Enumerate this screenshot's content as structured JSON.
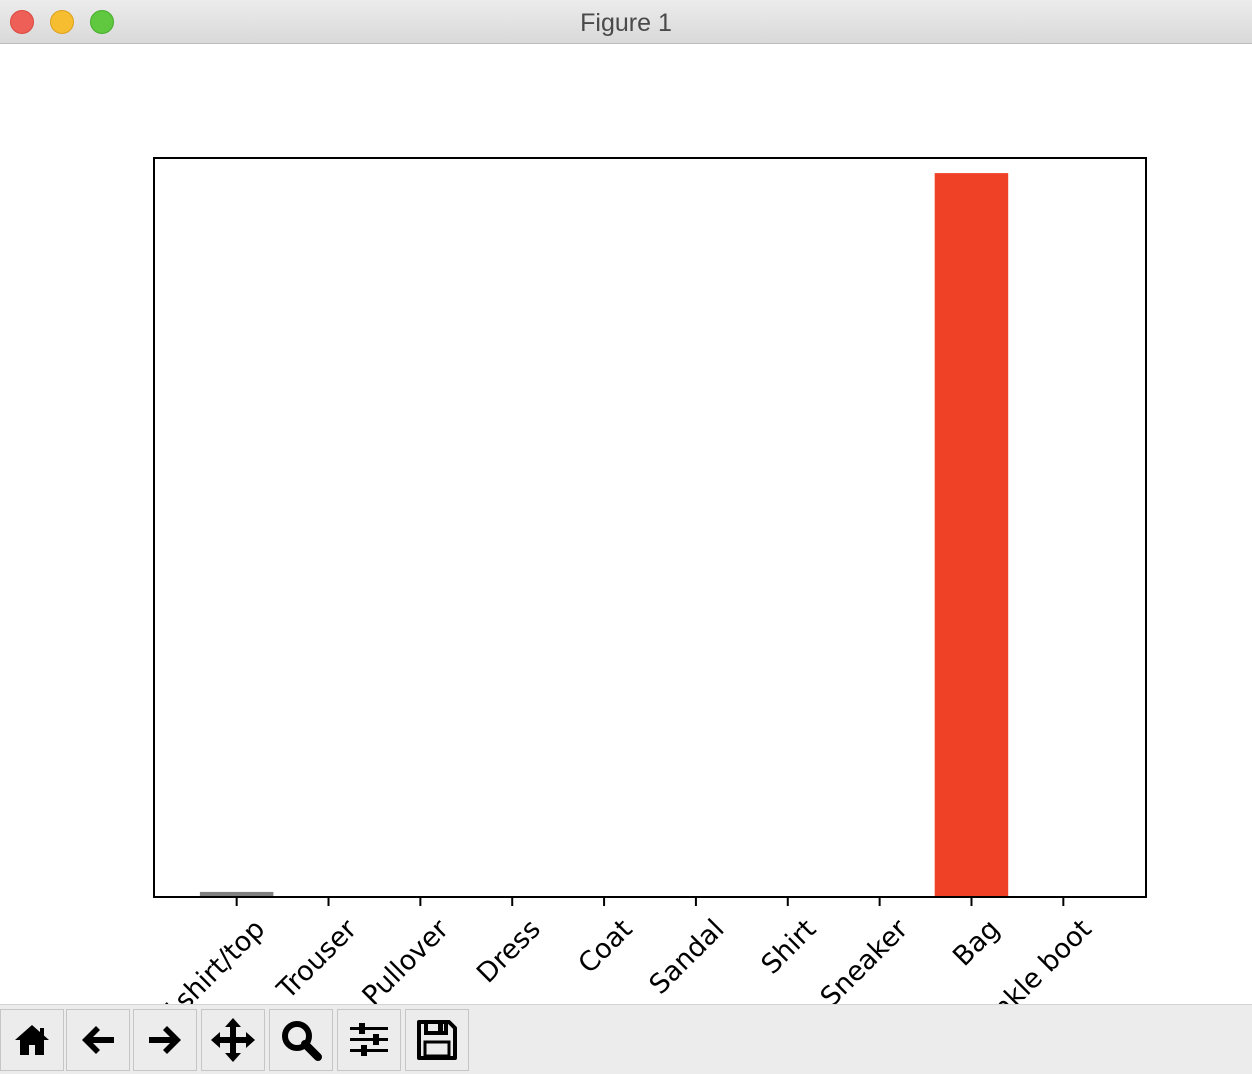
{
  "window": {
    "title": "Figure 1"
  },
  "toolbar": {
    "buttons": [
      {
        "name": "home-button",
        "icon": "home-icon"
      },
      {
        "name": "back-button",
        "icon": "arrow-left-icon"
      },
      {
        "name": "forward-button",
        "icon": "arrow-right-icon"
      },
      {
        "name": "pan-button",
        "icon": "move-icon"
      },
      {
        "name": "zoom-button",
        "icon": "magnifier-icon"
      },
      {
        "name": "configure-subplots-button",
        "icon": "sliders-icon"
      },
      {
        "name": "save-button",
        "icon": "floppy-disk-icon"
      }
    ]
  },
  "chart_data": {
    "type": "bar",
    "title": "",
    "xlabel": "",
    "ylabel": "",
    "categories": [
      "T-shirt/top",
      "Trouser",
      "Pullover",
      "Dress",
      "Coat",
      "Sandal",
      "Shirt",
      "Sneaker",
      "Bag",
      "Ankle boot"
    ],
    "values": [
      0.007,
      0.0,
      0.0,
      0.0,
      0.0,
      0.0,
      0.0,
      0.0,
      0.993,
      0.0
    ],
    "bar_colors": [
      "#808080",
      "#808080",
      "#808080",
      "#808080",
      "#808080",
      "#808080",
      "#808080",
      "#808080",
      "#ee4125",
      "#808080"
    ],
    "ylim": [
      0,
      1.0
    ],
    "yticks_visible": false,
    "grid": false,
    "xtick_rotation": 45
  }
}
